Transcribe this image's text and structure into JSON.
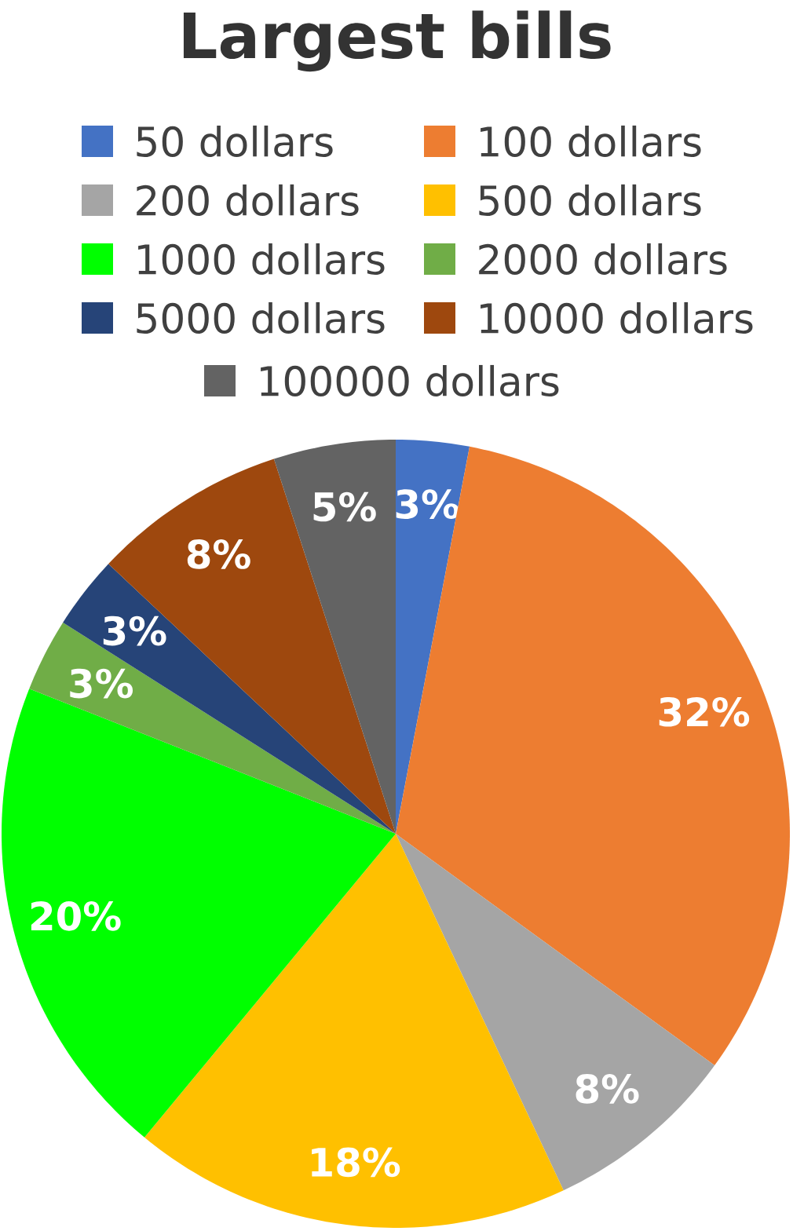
{
  "chart_data": {
    "type": "pie",
    "title": "Largest bills",
    "categories": [
      "50 dollars",
      "100 dollars",
      "200 dollars",
      "500 dollars",
      "1000 dollars",
      "2000 dollars",
      "5000 dollars",
      "10000 dollars",
      "100000 dollars"
    ],
    "values": [
      3,
      32,
      8,
      18,
      20,
      3,
      3,
      8,
      5
    ],
    "colors": [
      "#4472c4",
      "#ed7d31",
      "#a5a5a5",
      "#ffc000",
      "#00ff00",
      "#70ad47",
      "#264478",
      "#9e480e",
      "#636363"
    ],
    "value_labels": [
      "3%",
      "32%",
      "8%",
      "18%",
      "20%",
      "3%",
      "3%",
      "8%",
      "5%"
    ],
    "legend": "top"
  }
}
